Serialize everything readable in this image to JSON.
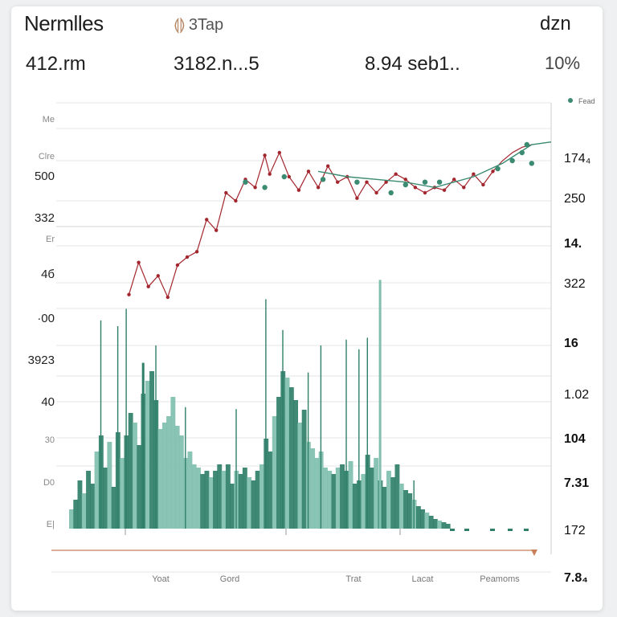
{
  "header": {
    "title": "Nermlles",
    "tag": "3Tap",
    "corner": "dzn"
  },
  "stats": [
    "412.rm",
    "3182.n...5",
    "8.94 seb1..",
    "10%"
  ],
  "colors": {
    "bars": "#2f7f69",
    "bars_light": "#7fbfae",
    "line_up": "#a3262e",
    "line_flat": "#3b8a72",
    "axis": "#c97f5a"
  },
  "chart_data": {
    "type": "bar",
    "legend": {
      "label": "Fead",
      "position": "top-right"
    },
    "left_ticks": [
      "Me",
      "Clre",
      "500",
      "332",
      "Er",
      "4б",
      "·00",
      "3923",
      "40",
      "30",
      "D0",
      "E|"
    ],
    "right_ticks": [
      "174₄",
      "250",
      "14.",
      "322",
      "16",
      "1.02",
      "104",
      "7.31",
      "172",
      "7.8₄"
    ],
    "x_ticks": [
      "Yoat",
      "Gord",
      "Trat",
      "Lacat",
      "Peamoms"
    ],
    "grid": true,
    "bars": [
      12,
      18,
      30,
      22,
      36,
      28,
      48,
      58,
      38,
      54,
      26,
      60,
      44,
      58,
      72,
      66,
      52,
      84,
      92,
      98,
      80,
      62,
      66,
      70,
      82,
      64,
      58,
      44,
      48,
      40,
      38,
      34,
      36,
      32,
      36,
      40,
      36,
      40,
      28,
      36,
      34,
      38,
      32,
      30,
      36,
      40,
      56,
      48,
      70,
      82,
      98,
      94,
      88,
      80,
      66,
      74,
      54,
      50,
      44,
      48,
      38,
      36,
      34,
      38,
      40,
      36,
      42,
      28,
      30,
      34,
      46,
      38,
      44,
      30,
      26,
      36,
      32,
      40,
      28,
      24,
      22,
      18,
      14,
      12,
      10,
      8,
      6,
      5,
      4,
      3
    ],
    "spikes": [
      {
        "i": 7,
        "v": 216
      },
      {
        "i": 11,
        "v": 210
      },
      {
        "i": 13,
        "v": 228
      },
      {
        "i": 17,
        "v": 172
      },
      {
        "i": 20,
        "v": 190
      },
      {
        "i": 27,
        "v": 126
      },
      {
        "i": 39,
        "v": 124
      },
      {
        "i": 46,
        "v": 238
      },
      {
        "i": 50,
        "v": 206
      },
      {
        "i": 56,
        "v": 162
      },
      {
        "i": 59,
        "v": 190
      },
      {
        "i": 65,
        "v": 196
      },
      {
        "i": 68,
        "v": 186
      },
      {
        "i": 70,
        "v": 198
      },
      {
        "i": 73,
        "v": 258
      },
      {
        "i": 81,
        "v": 50
      }
    ],
    "line": [
      {
        "x": 0.13,
        "y": 0.44
      },
      {
        "x": 0.15,
        "y": 0.56
      },
      {
        "x": 0.17,
        "y": 0.47
      },
      {
        "x": 0.19,
        "y": 0.51
      },
      {
        "x": 0.21,
        "y": 0.43
      },
      {
        "x": 0.23,
        "y": 0.55
      },
      {
        "x": 0.25,
        "y": 0.58
      },
      {
        "x": 0.27,
        "y": 0.6
      },
      {
        "x": 0.29,
        "y": 0.72
      },
      {
        "x": 0.31,
        "y": 0.68
      },
      {
        "x": 0.33,
        "y": 0.82
      },
      {
        "x": 0.35,
        "y": 0.79
      },
      {
        "x": 0.37,
        "y": 0.87
      },
      {
        "x": 0.39,
        "y": 0.84
      },
      {
        "x": 0.41,
        "y": 0.96
      },
      {
        "x": 0.42,
        "y": 0.89
      },
      {
        "x": 0.44,
        "y": 0.97
      },
      {
        "x": 0.46,
        "y": 0.88
      },
      {
        "x": 0.48,
        "y": 0.83
      },
      {
        "x": 0.5,
        "y": 0.9
      },
      {
        "x": 0.52,
        "y": 0.84
      },
      {
        "x": 0.54,
        "y": 0.92
      },
      {
        "x": 0.56,
        "y": 0.86
      },
      {
        "x": 0.58,
        "y": 0.88
      },
      {
        "x": 0.6,
        "y": 0.8
      },
      {
        "x": 0.62,
        "y": 0.86
      },
      {
        "x": 0.64,
        "y": 0.82
      },
      {
        "x": 0.66,
        "y": 0.86
      },
      {
        "x": 0.68,
        "y": 0.89
      },
      {
        "x": 0.7,
        "y": 0.87
      },
      {
        "x": 0.72,
        "y": 0.84
      },
      {
        "x": 0.74,
        "y": 0.82
      },
      {
        "x": 0.76,
        "y": 0.84
      },
      {
        "x": 0.78,
        "y": 0.83
      },
      {
        "x": 0.8,
        "y": 0.87
      },
      {
        "x": 0.82,
        "y": 0.84
      },
      {
        "x": 0.84,
        "y": 0.89
      },
      {
        "x": 0.86,
        "y": 0.85
      },
      {
        "x": 0.88,
        "y": 0.9
      },
      {
        "x": 0.9,
        "y": 0.94
      },
      {
        "x": 0.92,
        "y": 0.97
      },
      {
        "x": 0.94,
        "y": 0.99
      },
      {
        "x": 0.96,
        "y": 1.0
      }
    ],
    "green_points": [
      {
        "x": 0.37,
        "y": 0.86
      },
      {
        "x": 0.41,
        "y": 0.84
      },
      {
        "x": 0.45,
        "y": 0.88
      },
      {
        "x": 0.53,
        "y": 0.87
      },
      {
        "x": 0.6,
        "y": 0.86
      },
      {
        "x": 0.67,
        "y": 0.82
      },
      {
        "x": 0.7,
        "y": 0.85
      },
      {
        "x": 0.74,
        "y": 0.86
      },
      {
        "x": 0.77,
        "y": 0.86
      },
      {
        "x": 0.89,
        "y": 0.91
      },
      {
        "x": 0.92,
        "y": 0.94
      },
      {
        "x": 0.94,
        "y": 0.97
      },
      {
        "x": 0.95,
        "y": 1.0
      },
      {
        "x": 0.96,
        "y": 0.93
      }
    ]
  }
}
